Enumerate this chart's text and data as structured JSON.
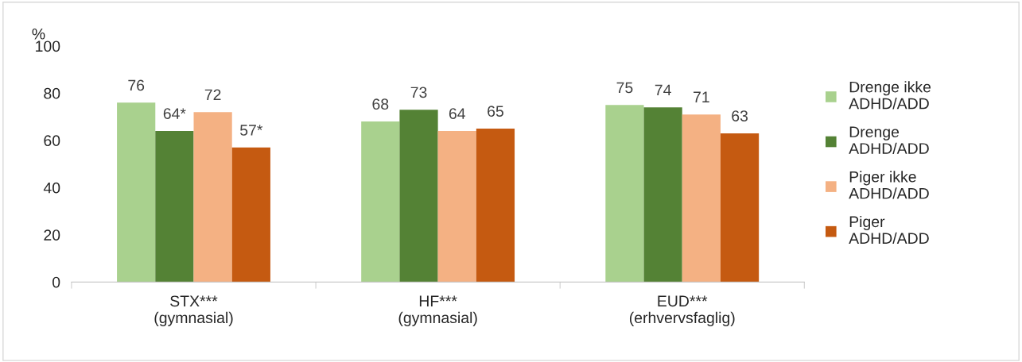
{
  "chart_data": {
    "type": "bar",
    "ylabel": "%",
    "categories": [
      "STX***\n(gymnasial)",
      "HF***\n(gymnasial)",
      "EUD***\n(erhvervsfaglig)"
    ],
    "series": [
      {
        "name": "Drenge ikke\nADHD/ADD",
        "color": "#a9d18e",
        "values": [
          76,
          68,
          75
        ],
        "value_labels": [
          "76",
          "68",
          "75"
        ]
      },
      {
        "name": "Drenge\nADHD/ADD",
        "color": "#548235",
        "values": [
          64,
          73,
          74
        ],
        "value_labels": [
          "64*",
          "73",
          "74"
        ]
      },
      {
        "name": "Piger ikke\nADHD/ADD",
        "color": "#f4b183",
        "values": [
          72,
          64,
          71
        ],
        "value_labels": [
          "72",
          "64",
          "71"
        ]
      },
      {
        "name": "Piger\nADHD/ADD",
        "color": "#c55a11",
        "values": [
          57,
          65,
          63
        ],
        "value_labels": [
          "57*",
          "65",
          "63"
        ]
      }
    ],
    "ylim": [
      0,
      100
    ],
    "yticks": [
      0,
      20,
      40,
      60,
      80,
      100
    ],
    "grid": false,
    "legend": "right"
  }
}
